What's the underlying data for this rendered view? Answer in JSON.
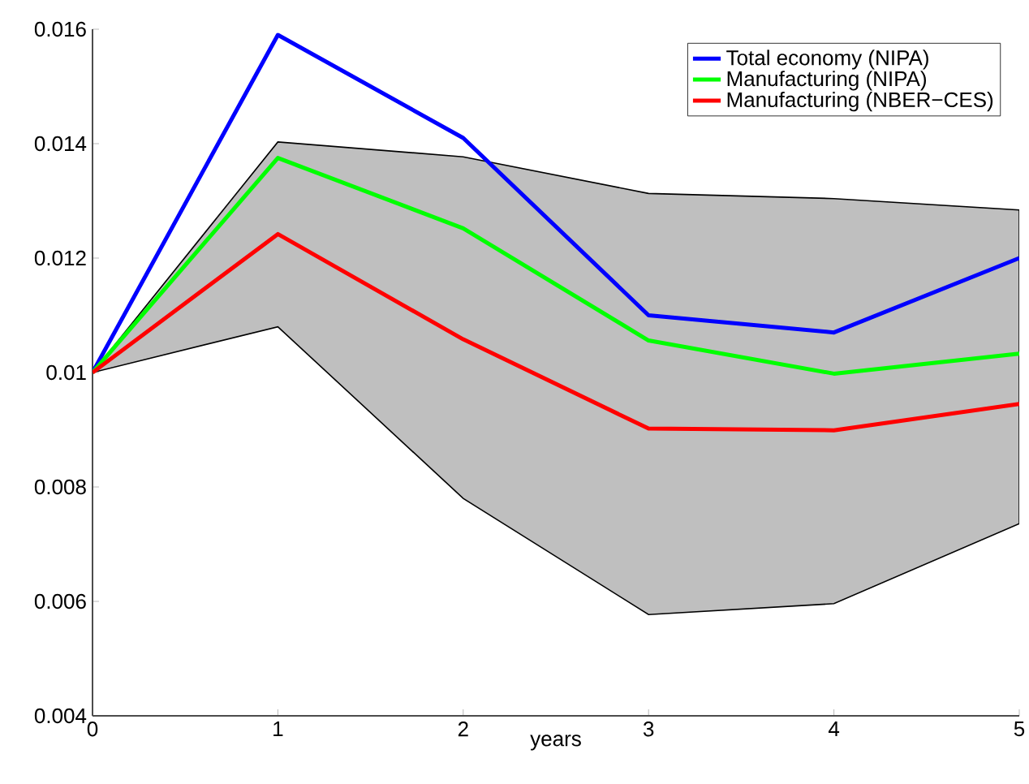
{
  "chart_data": {
    "type": "line",
    "xlabel": "years",
    "x": [
      0,
      1,
      2,
      3,
      4,
      5
    ],
    "series": [
      {
        "name": "Total economy (NIPA)",
        "color": "#0000ff",
        "values": [
          0.01,
          0.0159,
          0.0141,
          0.011,
          0.0107,
          0.012
        ]
      },
      {
        "name": "Manufacturing (NIPA)",
        "color": "#00ff00",
        "values": [
          0.01,
          0.01375,
          0.01252,
          0.01056,
          0.00998,
          0.01033
        ],
        "lower": [
          0.01,
          0.0108,
          0.0078,
          0.00577,
          0.00596,
          0.00736
        ],
        "upper": [
          0.01,
          0.01403,
          0.01377,
          0.01313,
          0.01304,
          0.01284
        ]
      },
      {
        "name": "Manufacturing (NBER−CES)",
        "color": "#ff0000",
        "values": [
          0.01,
          0.01242,
          0.01058,
          0.00902,
          0.00899,
          0.00945
        ]
      }
    ],
    "xlim": [
      0,
      5
    ],
    "xticks": [
      0,
      1,
      2,
      3,
      4,
      5
    ],
    "ylim": [
      0.004,
      0.016
    ],
    "yticks": [
      0.004,
      0.006,
      0.008,
      0.01,
      0.012,
      0.014,
      0.016
    ],
    "legend": "top right"
  }
}
